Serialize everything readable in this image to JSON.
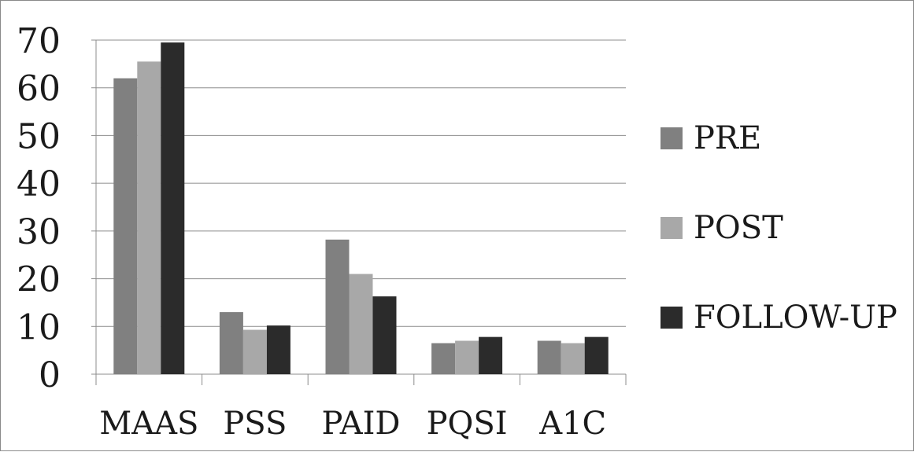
{
  "chart_data": {
    "type": "bar",
    "categories": [
      "MAAS",
      "PSS",
      "PAID",
      "PQSI",
      "A1C"
    ],
    "series": [
      {
        "name": "PRE",
        "color": "#808080",
        "values": [
          62,
          13,
          28.2,
          6.5,
          7
        ]
      },
      {
        "name": "POST",
        "color": "#a8a8a8",
        "values": [
          65.5,
          9.3,
          21,
          7,
          6.5
        ]
      },
      {
        "name": "FOLLOW-UP",
        "color": "#2b2b2b",
        "values": [
          69.5,
          10.2,
          16.3,
          7.8,
          7.8
        ]
      }
    ],
    "ylim": [
      0,
      70
    ],
    "yticks": [
      "0",
      "10",
      "20",
      "30",
      "40",
      "50",
      "60",
      "70"
    ],
    "grid": true,
    "legend_position": "right",
    "title": "",
    "xlabel": "",
    "ylabel": ""
  }
}
